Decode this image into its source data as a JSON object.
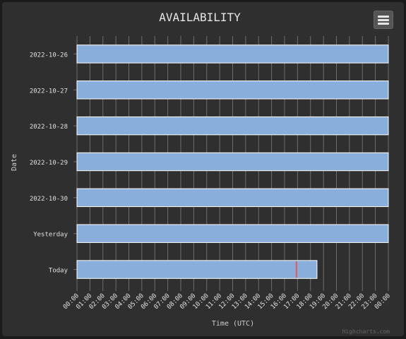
{
  "menu": {
    "icon": "hamburger-menu-icon"
  },
  "credits": "Highcharts.com",
  "colors": {
    "bar": "#8aaedb",
    "barBorder": "#ffffff",
    "grid": "#6e6e6e",
    "marker": "#e05a5a",
    "text": "#e0e0e0",
    "background": "#2f2f2f"
  },
  "chart_data": {
    "type": "bar",
    "title": "AVAILABILITY",
    "xlabel": "Time (UTC)",
    "ylabel": "Date",
    "xlim": [
      "00:00",
      "24:00"
    ],
    "x_ticks": [
      "00:00",
      "01:00",
      "02:00",
      "03:00",
      "04:00",
      "05:00",
      "06:00",
      "07:00",
      "08:00",
      "09:00",
      "10:00",
      "11:00",
      "12:00",
      "13:00",
      "14:00",
      "15:00",
      "16:00",
      "17:00",
      "18:00",
      "19:00",
      "20:00",
      "21:00",
      "22:00",
      "23:00",
      "00:00"
    ],
    "categories": [
      "2022-10-26",
      "2022-10-27",
      "2022-10-28",
      "2022-10-29",
      "2022-10-30",
      "Yesterday",
      "Today"
    ],
    "series": [
      {
        "start": [
          "00:00",
          "00:00",
          "00:00",
          "00:00",
          "00:00",
          "00:00",
          "00:00"
        ],
        "end": [
          "24:00",
          "24:00",
          "24:00",
          "24:00",
          "24:00",
          "24:00",
          "18:30"
        ]
      }
    ],
    "markers": [
      {
        "category": "Today",
        "time": "16:55"
      }
    ],
    "grid": true,
    "legend": "none"
  }
}
